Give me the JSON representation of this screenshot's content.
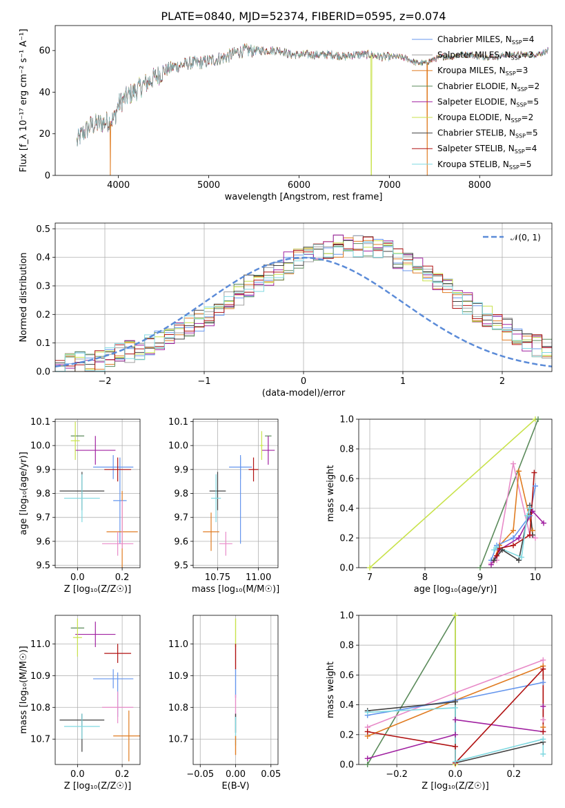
{
  "title": "PLATE=0840, MJD=52374, FIBERID=0595, z=0.074",
  "chart_data": [
    {
      "id": "spectrum",
      "type": "line",
      "xlabel": "wavelength [Angstrom, rest frame]",
      "ylabel": "Flux [f_λ 10⁻¹⁷ erg cm⁻² s⁻¹ A⁻¹]",
      "xlim": [
        3300,
        8800
      ],
      "ylim": [
        0,
        72
      ],
      "xticks": [
        4000,
        5000,
        6000,
        7000,
        8000
      ],
      "yticks": [
        0,
        20,
        40,
        60
      ],
      "grid": false,
      "legend_position": "top-right",
      "continuum": {
        "x": [
          3540,
          3600,
          3700,
          3800,
          3900,
          3950,
          4000,
          4100,
          4200,
          4300,
          4400,
          4500,
          4600,
          4700,
          4800,
          4900,
          5000,
          5100,
          5200,
          5300,
          5400,
          5500,
          5600,
          5700,
          5800,
          5900,
          6000,
          6100,
          6200,
          6300,
          6400,
          6500,
          6600,
          6700,
          6800,
          6900,
          7000,
          7100,
          7200,
          7300,
          7400,
          7500,
          7600,
          7700,
          7800,
          7900,
          8000,
          8100,
          8200,
          8300,
          8400,
          8500,
          8600,
          8700,
          8760
        ],
        "y": [
          16,
          20,
          24,
          25,
          26,
          27,
          34,
          38,
          41,
          44,
          47,
          50,
          52,
          53,
          54,
          54,
          55,
          56,
          57,
          59,
          60,
          60,
          60,
          60,
          60,
          58,
          58,
          58,
          58,
          58,
          58,
          57,
          58,
          58,
          58,
          57,
          57,
          57,
          56,
          54,
          54,
          56,
          57,
          57,
          58,
          58,
          57,
          57,
          57,
          58,
          58,
          58,
          58,
          59,
          60
        ]
      },
      "dropouts": [
        {
          "series": "Kroupa MILES",
          "x": 3910
        },
        {
          "series": "Kroupa ELODIE",
          "x": 6800
        },
        {
          "series": "Kroupa MILES",
          "x": 7420
        }
      ],
      "series": [
        {
          "name": "Chabrier MILES, N_SSP=4",
          "color": "#6495ED"
        },
        {
          "name": "Salpeter MILES, N_SSP=3",
          "color": "#A0A0A0"
        },
        {
          "name": "Kroupa MILES, N_SSP=3",
          "color": "#E07B20"
        },
        {
          "name": "Chabrier ELODIE, N_SSP=2",
          "color": "#5A8A5A"
        },
        {
          "name": "Salpeter ELODIE, N_SSP=5",
          "color": "#A020A0"
        },
        {
          "name": "Kroupa ELODIE, N_SSP=2",
          "color": "#C8E24A"
        },
        {
          "name": "Chabrier STELIB, N_SSP=5",
          "color": "#404040"
        },
        {
          "name": "Salpeter STELIB, N_SSP=4",
          "color": "#B01010"
        },
        {
          "name": "Kroupa STELIB, N_SSP=5",
          "color": "#7FD8E0"
        }
      ]
    },
    {
      "id": "residuals",
      "type": "histogram",
      "xlabel": "(data-model)/error",
      "ylabel": "Normed distribution",
      "xlim": [
        -2.5,
        2.5
      ],
      "ylim": [
        0,
        0.52
      ],
      "xticks": [
        -2,
        -1,
        0,
        1,
        2
      ],
      "yticks": [
        0.0,
        0.1,
        0.2,
        0.3,
        0.4,
        0.5
      ],
      "grid": true,
      "legend_position": "top-right",
      "gaussian_label": "𝒩(0, 1)",
      "gaussian_color": "#5B8BD8",
      "bin_edges_start": -2.5,
      "bin_width": 0.1,
      "envelope": [
        0.02,
        0.025,
        0.03,
        0.035,
        0.04,
        0.05,
        0.06,
        0.07,
        0.08,
        0.095,
        0.11,
        0.125,
        0.14,
        0.16,
        0.18,
        0.2,
        0.22,
        0.25,
        0.27,
        0.3,
        0.32,
        0.34,
        0.36,
        0.38,
        0.4,
        0.41,
        0.42,
        0.43,
        0.44,
        0.45,
        0.44,
        0.44,
        0.43,
        0.42,
        0.4,
        0.38,
        0.36,
        0.34,
        0.31,
        0.29,
        0.26,
        0.24,
        0.21,
        0.19,
        0.17,
        0.15,
        0.13,
        0.11,
        0.09,
        0.08
      ]
    },
    {
      "id": "age-vs-Z",
      "type": "scatter",
      "xlabel": "Z [log₁₀(Z/Z☉)]",
      "ylabel": "age  [log₁₀(age/yr)]",
      "xlim": [
        -0.1,
        0.28
      ],
      "ylim": [
        9.49,
        10.11
      ],
      "xticks": [
        0.0,
        0.2
      ],
      "yticks": [
        9.5,
        9.6,
        9.7,
        9.8,
        9.9,
        10.0,
        10.1
      ],
      "grid": true,
      "points": [
        {
          "x": 0.16,
          "y": 9.91,
          "xerr": 0.09,
          "yerr": 0.05,
          "color": "#6495ED"
        },
        {
          "x": 0.19,
          "y": 9.77,
          "xerr": 0.03,
          "yerr": 0.18,
          "color": "#6495ED"
        },
        {
          "x": 0.2,
          "y": 9.64,
          "xerr": 0.07,
          "yerr": 0.17,
          "color": "#E07B20"
        },
        {
          "x": 0.18,
          "y": 9.59,
          "xerr": 0.07,
          "yerr": 0.05,
          "color": "#E88AC8"
        },
        {
          "x": 0.2,
          "y": 9.67,
          "xerr": 0.0,
          "yerr": 0.1,
          "color": "#E88AC8"
        },
        {
          "x": 0.0,
          "y": 10.04,
          "xerr": 0.03,
          "yerr": 0.0,
          "color": "#5A8A5A"
        },
        {
          "x": 0.08,
          "y": 9.98,
          "xerr": 0.09,
          "yerr": 0.06,
          "color": "#A020A0"
        },
        {
          "x": -0.01,
          "y": 10.02,
          "xerr": 0.02,
          "yerr": 0.08,
          "color": "#C8E24A"
        },
        {
          "x": 0.02,
          "y": 9.81,
          "xerr": 0.1,
          "yerr": 0.08,
          "color": "#404040"
        },
        {
          "x": 0.18,
          "y": 9.9,
          "xerr": 0.06,
          "yerr": 0.05,
          "color": "#B01010"
        },
        {
          "x": 0.02,
          "y": 9.78,
          "xerr": 0.08,
          "yerr": 0.1,
          "color": "#7FD8E0"
        }
      ]
    },
    {
      "id": "age-vs-mass",
      "type": "scatter",
      "xlabel": "mass [log₁₀(M/M☉)]",
      "ylabel": "",
      "xlim": [
        10.6,
        11.12
      ],
      "ylim": [
        9.49,
        10.11
      ],
      "xticks": [
        10.75,
        11.0
      ],
      "yticks": [
        9.5,
        9.6,
        9.7,
        9.8,
        9.9,
        10.0,
        10.1
      ],
      "grid": true,
      "points": [
        {
          "x": 10.89,
          "y": 9.91,
          "xerr": 0.07,
          "yerr": 0.05,
          "color": "#6495ED"
        },
        {
          "x": 10.89,
          "y": 9.77,
          "xerr": 0.0,
          "yerr": 0.18,
          "color": "#6495ED"
        },
        {
          "x": 10.71,
          "y": 9.64,
          "xerr": 0.05,
          "yerr": 0.08,
          "color": "#E07B20"
        },
        {
          "x": 10.8,
          "y": 9.59,
          "xerr": 0.04,
          "yerr": 0.05,
          "color": "#E88AC8"
        },
        {
          "x": 11.06,
          "y": 10.04,
          "xerr": 0.02,
          "yerr": 0.0,
          "color": "#5A8A5A"
        },
        {
          "x": 11.06,
          "y": 9.98,
          "xerr": 0.04,
          "yerr": 0.06,
          "color": "#A020A0"
        },
        {
          "x": 11.02,
          "y": 10.0,
          "xerr": 0.01,
          "yerr": 0.06,
          "color": "#C8E24A"
        },
        {
          "x": 10.75,
          "y": 9.81,
          "xerr": 0.05,
          "yerr": 0.08,
          "color": "#404040"
        },
        {
          "x": 10.97,
          "y": 9.9,
          "xerr": 0.03,
          "yerr": 0.05,
          "color": "#B01010"
        },
        {
          "x": 10.74,
          "y": 9.78,
          "xerr": 0.03,
          "yerr": 0.1,
          "color": "#7FD8E0"
        }
      ]
    },
    {
      "id": "weight-vs-age",
      "type": "line",
      "xlabel": "age  [log₁₀(age/yr)]",
      "ylabel": "mass weight",
      "xlim": [
        6.8,
        10.3
      ],
      "ylim": [
        0,
        1.0
      ],
      "xticks": [
        7,
        8,
        9,
        10
      ],
      "yticks": [
        0.0,
        0.2,
        0.4,
        0.6,
        0.8,
        1.0
      ],
      "grid": true,
      "series": [
        {
          "color": "#C8E24A",
          "x": [
            7.0,
            10.0
          ],
          "y": [
            0.0,
            1.0
          ]
        },
        {
          "color": "#5A8A5A",
          "x": [
            9.0,
            10.05
          ],
          "y": [
            0.0,
            1.0
          ]
        },
        {
          "color": "#E88AC8",
          "x": [
            9.2,
            9.3,
            9.6,
            9.9,
            10.0
          ],
          "y": [
            0.03,
            0.05,
            0.7,
            0.22,
            0.2
          ]
        },
        {
          "color": "#E07B20",
          "x": [
            9.25,
            9.35,
            9.6,
            9.7,
            9.95
          ],
          "y": [
            0.05,
            0.15,
            0.25,
            0.65,
            0.25
          ]
        },
        {
          "color": "#6495ED",
          "x": [
            9.2,
            9.3,
            9.6,
            9.9,
            10.0
          ],
          "y": [
            0.05,
            0.15,
            0.2,
            0.35,
            0.55
          ]
        },
        {
          "color": "#A020A0",
          "x": [
            9.2,
            9.35,
            9.7,
            9.95,
            10.15
          ],
          "y": [
            0.02,
            0.12,
            0.2,
            0.38,
            0.3
          ]
        },
        {
          "color": "#404040",
          "x": [
            9.25,
            9.4,
            9.7,
            9.9,
            9.95
          ],
          "y": [
            0.05,
            0.12,
            0.05,
            0.42,
            0.22
          ]
        },
        {
          "color": "#B01010",
          "x": [
            9.3,
            9.35,
            9.6,
            9.9,
            9.98
          ],
          "y": [
            0.08,
            0.13,
            0.15,
            0.22,
            0.64
          ]
        },
        {
          "color": "#7FD8E0",
          "x": [
            9.25,
            9.3,
            9.75,
            9.85,
            9.9
          ],
          "y": [
            0.12,
            0.14,
            0.07,
            0.35,
            0.4
          ]
        }
      ]
    },
    {
      "id": "mass-vs-Z",
      "type": "scatter",
      "xlabel": "Z [log₁₀(Z/Z☉)]",
      "ylabel": "mass [log₁₀(M/M☉)]",
      "xlim": [
        -0.1,
        0.28
      ],
      "ylim": [
        10.62,
        11.09
      ],
      "xticks": [
        0.0,
        0.2
      ],
      "yticks": [
        10.7,
        10.8,
        10.9,
        11.0
      ],
      "grid": true,
      "points": [
        {
          "x": 0.16,
          "y": 10.89,
          "xerr": 0.09,
          "yerr": 0.03,
          "color": "#6495ED"
        },
        {
          "x": 0.18,
          "y": 10.84,
          "xerr": 0.0,
          "yerr": 0.07,
          "color": "#6495ED"
        },
        {
          "x": 0.23,
          "y": 10.71,
          "xerr": 0.07,
          "yerr": 0.08,
          "color": "#E07B20"
        },
        {
          "x": 0.18,
          "y": 10.8,
          "xerr": 0.07,
          "yerr": 0.05,
          "color": "#E88AC8"
        },
        {
          "x": 0.0,
          "y": 11.05,
          "xerr": 0.03,
          "yerr": 0.0,
          "color": "#5A8A5A"
        },
        {
          "x": 0.08,
          "y": 11.03,
          "xerr": 0.09,
          "yerr": 0.04,
          "color": "#A020A0"
        },
        {
          "x": 0.0,
          "y": 11.02,
          "xerr": 0.02,
          "yerr": 0.06,
          "color": "#C8E24A"
        },
        {
          "x": 0.02,
          "y": 10.76,
          "xerr": 0.1,
          "yerr": 0.02,
          "color": "#404040"
        },
        {
          "x": 0.02,
          "y": 10.72,
          "xerr": 0.0,
          "yerr": 0.06,
          "color": "#404040"
        },
        {
          "x": 0.18,
          "y": 10.97,
          "xerr": 0.06,
          "yerr": 0.03,
          "color": "#B01010"
        },
        {
          "x": 0.02,
          "y": 10.74,
          "xerr": 0.08,
          "yerr": 0.04,
          "color": "#7FD8E0"
        }
      ]
    },
    {
      "id": "mass-vs-EBV",
      "type": "scatter",
      "xlabel": "E(B-V)",
      "ylabel": "",
      "xlim": [
        -0.06,
        0.06
      ],
      "ylim": [
        10.62,
        11.09
      ],
      "xticks": [
        -0.05,
        0.0,
        0.05
      ],
      "yticks": [
        10.7,
        10.8,
        10.9,
        11.0
      ],
      "grid": true,
      "segments": [
        {
          "color": "#C8E24A",
          "y1": 10.99,
          "y2": 11.08
        },
        {
          "color": "#B01010",
          "y1": 10.92,
          "y2": 11.0
        },
        {
          "color": "#6495ED",
          "y1": 10.83,
          "y2": 10.92
        },
        {
          "color": "#E88AC8",
          "y1": 10.77,
          "y2": 10.84
        },
        {
          "color": "#404040",
          "y1": 10.72,
          "y2": 10.78
        },
        {
          "color": "#7FD8E0",
          "y1": 10.68,
          "y2": 10.77
        },
        {
          "color": "#E07B20",
          "y1": 10.65,
          "y2": 10.71
        }
      ]
    },
    {
      "id": "weight-vs-Z",
      "type": "line",
      "xlabel": "Z [log₁₀(Z/Z☉)]",
      "ylabel": "mass weight",
      "xlim": [
        -0.33,
        0.33
      ],
      "ylim": [
        0,
        1.0
      ],
      "xticks": [
        -0.2,
        0.0,
        0.2
      ],
      "yticks": [
        0.0,
        0.2,
        0.4,
        0.6,
        0.8,
        1.0
      ],
      "grid": true,
      "series": [
        {
          "color": "#5A8A5A",
          "x": [
            -0.3,
            0.0,
            0.0
          ],
          "y": [
            0.0,
            1.0,
            0.43
          ]
        },
        {
          "color": "#C8E24A",
          "x": [
            0.0,
            0.0
          ],
          "y": [
            0.0,
            1.0
          ]
        },
        {
          "color": "#E88AC8",
          "x": [
            -0.3,
            0.0,
            0.3,
            0.3
          ],
          "y": [
            0.25,
            0.48,
            0.7,
            0.3
          ]
        },
        {
          "color": "#E07B20",
          "x": [
            -0.3,
            0.0,
            0.3,
            0.3
          ],
          "y": [
            0.19,
            0.43,
            0.66,
            0.25
          ]
        },
        {
          "color": "#6495ED",
          "x": [
            -0.3,
            0.0,
            0.3
          ],
          "y": [
            0.33,
            0.43,
            0.55
          ]
        },
        {
          "color": "#A020A0",
          "x": [
            -0.3,
            0.0,
            0.0,
            0.3,
            0.3
          ],
          "y": [
            0.04,
            0.2,
            0.3,
            0.22,
            0.39
          ]
        },
        {
          "color": "#404040",
          "x": [
            -0.3,
            0.0,
            0.0,
            0.3
          ],
          "y": [
            0.36,
            0.42,
            0.01,
            0.15
          ]
        },
        {
          "color": "#B01010",
          "x": [
            -0.3,
            0.0,
            0.0,
            0.3,
            0.3
          ],
          "y": [
            0.22,
            0.12,
            0.01,
            0.64,
            0.22
          ]
        },
        {
          "color": "#7FD8E0",
          "x": [
            -0.3,
            0.0,
            0.0,
            0.3,
            0.3
          ],
          "y": [
            0.35,
            0.38,
            0.02,
            0.17,
            0.07
          ]
        }
      ]
    }
  ]
}
